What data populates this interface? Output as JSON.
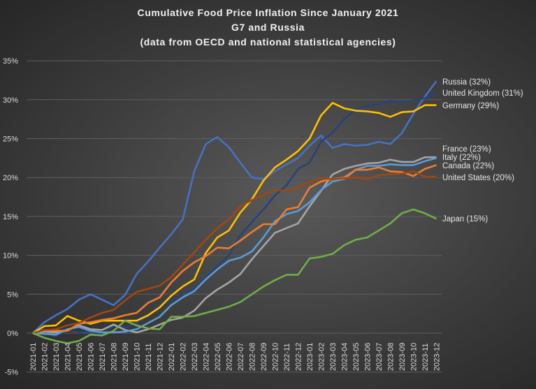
{
  "chart_data": {
    "type": "line",
    "title": "Cumulative Food Price Inflation Since January 2021",
    "subtitle": [
      "G7 and Russia",
      "(data from OECD and national statistical agencies)"
    ],
    "xlabel": "",
    "ylabel": "",
    "ylim": [
      -5,
      35
    ],
    "yticks": [
      -5,
      0,
      5,
      10,
      15,
      20,
      25,
      30,
      35
    ],
    "ytick_format": "percent",
    "grid": "horizontal",
    "legend": "inline labels at right end of lines",
    "categories": [
      "2021-01",
      "2021-02",
      "2021-03",
      "2021-04",
      "2021-05",
      "2021-06",
      "2021-07",
      "2021-08",
      "2021-09",
      "2021-10",
      "2021-11",
      "2021-12",
      "2022-01",
      "2022-02",
      "2022-03",
      "2022-04",
      "2022-05",
      "2022-06",
      "2022-07",
      "2022-08",
      "2022-09",
      "2022-10",
      "2022-11",
      "2022-12",
      "2023-01",
      "2023-02",
      "2023-03",
      "2023-04",
      "2023-05",
      "2023-06",
      "2023-07",
      "2023-08",
      "2023-09",
      "2023-10",
      "2023-11",
      "2023-12"
    ],
    "series": [
      {
        "name": "Russia (32%)",
        "color": "#4472C4",
        "values": [
          0,
          1.4,
          2.3,
          3.1,
          4.3,
          5.0,
          4.3,
          3.6,
          4.9,
          7.6,
          9.2,
          11.0,
          12.7,
          14.6,
          20.8,
          24.3,
          25.2,
          23.9,
          21.9,
          20.0,
          19.8,
          20.8,
          21.7,
          22.5,
          24.1,
          25.4,
          23.8,
          24.3,
          24.1,
          24.2,
          24.6,
          24.3,
          25.7,
          28.2,
          30.4,
          32.4
        ]
      },
      {
        "name": "United Kingdom (31%)",
        "color": "#264478",
        "values": [
          0,
          0,
          -0.4,
          0.4,
          0.1,
          0.2,
          -0.1,
          1.0,
          0.7,
          1.3,
          2.2,
          3.5,
          4.2,
          5.2,
          5.6,
          7.1,
          8.6,
          10.0,
          12.6,
          14.3,
          15.9,
          17.7,
          19.0,
          21.1,
          21.9,
          24.6,
          25.8,
          27.5,
          28.8,
          29.2,
          29.4,
          29.9,
          29.7,
          29.9,
          30.2,
          30.9
        ]
      },
      {
        "name": "Germany (29%)",
        "color": "#FFC000",
        "values": [
          0,
          0.9,
          1.0,
          2.2,
          1.6,
          1.2,
          1.6,
          1.6,
          1.6,
          1.6,
          2.3,
          3.3,
          4.8,
          6.0,
          6.9,
          10.3,
          12.3,
          13.2,
          15.5,
          17.2,
          19.6,
          21.3,
          22.3,
          23.4,
          25.0,
          28.0,
          29.6,
          28.9,
          28.6,
          28.5,
          28.3,
          27.8,
          28.4,
          28.5,
          29.3,
          29.3
        ]
      },
      {
        "name": "France (23%)",
        "color": "#A5A5A5",
        "values": [
          0,
          0.2,
          0.1,
          0.4,
          1.0,
          0.5,
          0.4,
          1.1,
          0.4,
          0.1,
          0.5,
          1.1,
          1.7,
          2.0,
          2.9,
          4.5,
          5.6,
          6.5,
          7.6,
          9.5,
          11.2,
          12.9,
          13.5,
          14.1,
          16.3,
          18.3,
          20.4,
          21.1,
          21.5,
          21.8,
          21.9,
          22.3,
          22.0,
          22.0,
          22.6,
          22.6
        ]
      },
      {
        "name": "Italy (22%)",
        "color": "#5B9BD5",
        "values": [
          0,
          -0.1,
          -0.2,
          0.5,
          0.8,
          0.3,
          0.1,
          0.1,
          0.2,
          0.5,
          1.3,
          2.1,
          3.6,
          4.6,
          5.4,
          6.9,
          8.2,
          9.3,
          9.7,
          10.5,
          12.3,
          14.4,
          15.3,
          15.7,
          16.8,
          18.4,
          19.5,
          19.8,
          21.0,
          21.5,
          21.5,
          21.7,
          21.6,
          21.6,
          22.1,
          22.5
        ]
      },
      {
        "name": "Canada (22%)",
        "color": "#ED7D31",
        "values": [
          0,
          0.4,
          0.3,
          0.3,
          1.2,
          1.4,
          1.7,
          1.9,
          2.3,
          2.6,
          3.9,
          4.6,
          6.5,
          8.0,
          9.1,
          9.9,
          11.0,
          10.9,
          11.9,
          13.0,
          14.0,
          14.0,
          15.9,
          16.2,
          18.7,
          19.5,
          19.8,
          20.0,
          21.0,
          21.0,
          21.3,
          20.8,
          20.7,
          20.2,
          21.1,
          21.6
        ]
      },
      {
        "name": "United States (20%)",
        "color": "#9E480E",
        "values": [
          0,
          0.4,
          0.5,
          1.0,
          1.3,
          2.0,
          2.6,
          3.0,
          4.2,
          5.3,
          5.7,
          6.1,
          7.2,
          8.8,
          10.4,
          12.0,
          13.5,
          14.6,
          16.3,
          17.1,
          17.8,
          18.4,
          18.3,
          18.7,
          19.5,
          19.9,
          19.8,
          19.9,
          20.0,
          19.8,
          20.3,
          20.4,
          20.5,
          20.8,
          20.1,
          20.1
        ]
      },
      {
        "name": "Japan (15%)",
        "color": "#70AD47",
        "values": [
          0,
          -0.6,
          -1.0,
          -1.3,
          -1.0,
          -0.2,
          -0.3,
          0.3,
          1.6,
          1.0,
          0.6,
          0.5,
          2.1,
          2.1,
          2.2,
          2.6,
          3.0,
          3.4,
          4.0,
          5.0,
          6.0,
          6.8,
          7.5,
          7.5,
          9.6,
          9.8,
          10.2,
          11.3,
          12.0,
          12.3,
          13.2,
          14.1,
          15.4,
          15.9,
          15.4,
          14.7
        ]
      }
    ]
  }
}
